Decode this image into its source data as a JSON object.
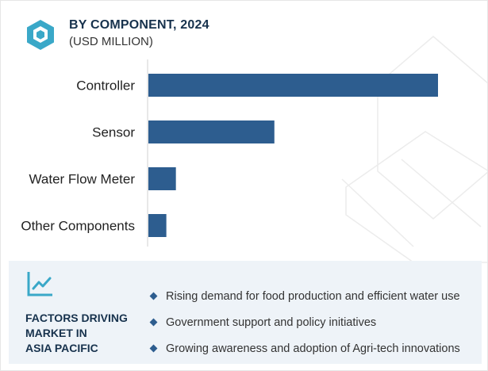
{
  "header": {
    "title": "BY COMPONENT, 2024",
    "subtitle": "(USD MILLION)"
  },
  "chart_data": {
    "type": "bar",
    "orientation": "horizontal",
    "title": "BY COMPONENT, 2024",
    "subtitle": "(USD MILLION)",
    "categories": [
      "Controller",
      "Sensor",
      "Water Flow Meter",
      "Other Components"
    ],
    "values": [
      100,
      43.5,
      9.5,
      6.2
    ],
    "value_scale": "relative (no axis values printed)",
    "bar_color": "#2d5d8f",
    "grid": false,
    "legend": "none"
  },
  "factors": {
    "title_lines": [
      "FACTORS DRIVING",
      "MARKET IN",
      "ASIA PACIFIC"
    ],
    "items": [
      "Rising demand for food production and efficient water use",
      "Government support and policy initiatives",
      "Growing awareness and adoption of Agri-tech innovations"
    ]
  },
  "icons": {
    "header": "cube-icon",
    "panel": "trend-chart-icon"
  },
  "colors": {
    "bar": "#2d5d8f",
    "icon": "#3aa8c8",
    "title": "#17324d",
    "panel_bg": "#eef3f8"
  }
}
